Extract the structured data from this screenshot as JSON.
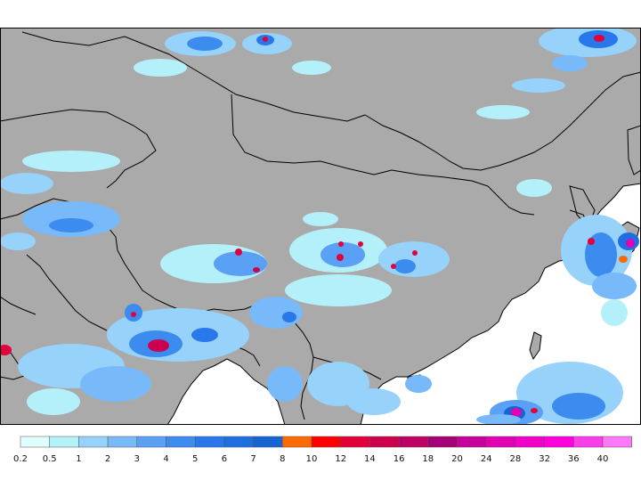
{
  "legend": {
    "labels": [
      "0.2",
      "0.5",
      "1",
      "2",
      "3",
      "4",
      "5",
      "6",
      "7",
      "8",
      "10",
      "12",
      "14",
      "16",
      "18",
      "20",
      "24",
      "28",
      "32",
      "36",
      "40"
    ],
    "colors": [
      "#e0ffff",
      "#b4f0fa",
      "#96d2fa",
      "#78b9fa",
      "#5aa0f5",
      "#3c8cf0",
      "#2878eb",
      "#1e6ee1",
      "#1464d2",
      "#ff6a00",
      "#ff0000",
      "#e1003c",
      "#cd0050",
      "#be0064",
      "#a50078",
      "#c8009b",
      "#e100b4",
      "#f000c8",
      "#ff00dc",
      "#ff3ceb",
      "#ff78f5"
    ]
  },
  "map": {
    "land_color": "#aaaaaa",
    "water_color": "#ffffff",
    "border_color": "#000000"
  }
}
